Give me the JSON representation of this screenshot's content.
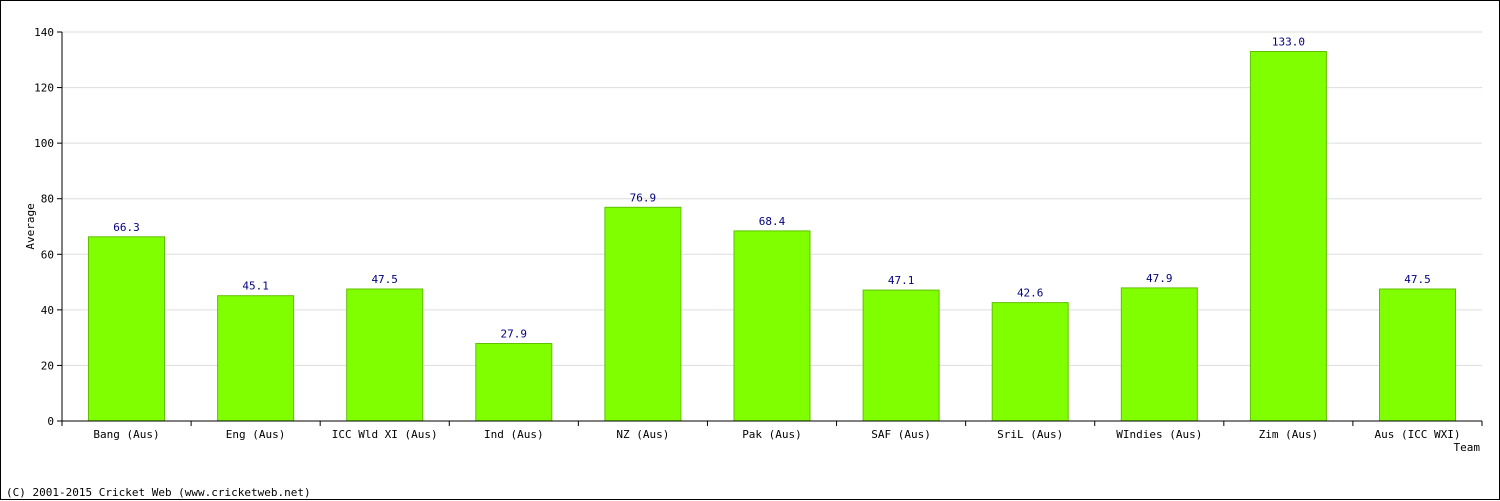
{
  "chart_data": {
    "type": "bar",
    "title": "",
    "xlabel": "Team",
    "ylabel": "Average",
    "ylim": [
      0,
      140
    ],
    "yticks": [
      0,
      20,
      40,
      60,
      80,
      100,
      120,
      140
    ],
    "grid": true,
    "categories": [
      "Bang (Aus)",
      "Eng (Aus)",
      "ICC Wld XI (Aus)",
      "Ind (Aus)",
      "NZ (Aus)",
      "Pak (Aus)",
      "SAF (Aus)",
      "SriL (Aus)",
      "WIndies (Aus)",
      "Zim (Aus)",
      "Aus (ICC WXI)"
    ],
    "values": [
      66.3,
      45.1,
      47.5,
      27.9,
      76.9,
      68.4,
      47.1,
      42.6,
      47.9,
      133.0,
      47.5
    ],
    "value_labels": [
      "66.3",
      "45.1",
      "47.5",
      "27.9",
      "76.9",
      "68.4",
      "47.1",
      "42.6",
      "47.9",
      "133.0",
      "47.5"
    ],
    "colors": {
      "bar_fill": "#80ff00",
      "bar_stroke": "#60c000",
      "value_label": "#000080",
      "grid": "#dddddd",
      "axis": "#000000"
    }
  },
  "footer": {
    "copyright": "(C) 2001-2015 Cricket Web (www.cricketweb.net)"
  }
}
